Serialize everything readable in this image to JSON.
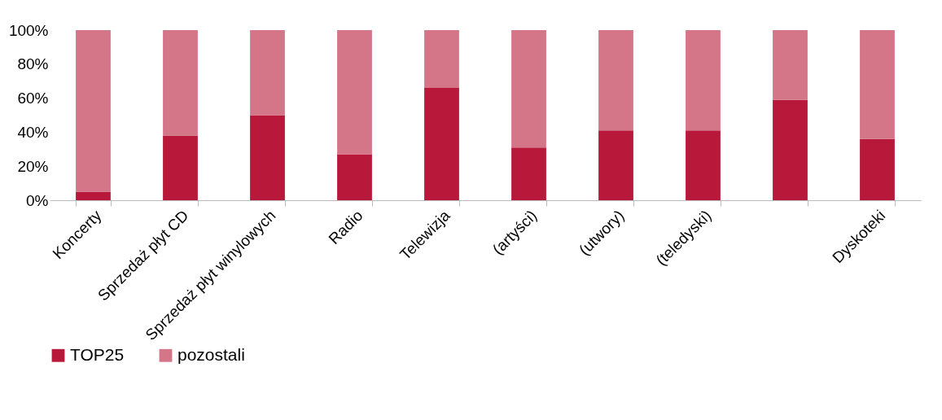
{
  "chart_data": {
    "type": "bar",
    "stacked": true,
    "categories": [
      "Koncerty",
      "Sprzedaż płyt CD",
      "Sprzedaż płyt winylowych",
      "Radio",
      "Telewizja",
      "(artyści)",
      "(utwory)",
      "(teledyski)",
      null,
      "Dyskoteki"
    ],
    "series": [
      {
        "name": "TOP25",
        "color": "#b8193a",
        "values": [
          5,
          38,
          50,
          27,
          66,
          31,
          41,
          41,
          59,
          36
        ]
      },
      {
        "name": "pozostali",
        "color": "#d47688",
        "values": [
          95,
          62,
          50,
          73,
          34,
          69,
          59,
          59,
          41,
          64
        ]
      }
    ],
    "ylim": [
      0,
      100
    ],
    "yticks": [
      {
        "value": 0,
        "label": "0%"
      },
      {
        "value": 20,
        "label": "20%"
      },
      {
        "value": 40,
        "label": "40%"
      },
      {
        "value": 60,
        "label": "60%"
      },
      {
        "value": 80,
        "label": "80%"
      },
      {
        "value": 100,
        "label": "100%"
      }
    ],
    "grid": false,
    "legend": "bottom"
  }
}
